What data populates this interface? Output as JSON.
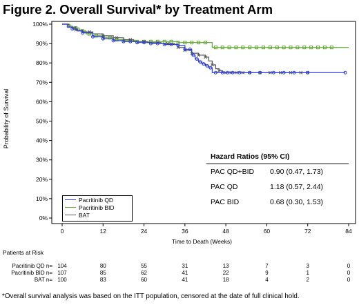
{
  "figure_title": "Figure 2. Overall Survival* by Treatment Arm",
  "colors": {
    "pacritinib_qd": "#2f3fd8",
    "pacritinib_bid": "#5fa832",
    "bat": "#555555",
    "grid": "#bbbbbb"
  },
  "chart_data": {
    "type": "line",
    "title": "Figure 2. Overall Survival* by Treatment Arm",
    "xlabel": "Time to Death (Weeks)",
    "ylabel": "Probability of Survival",
    "xlim": [
      0,
      84
    ],
    "ylim": [
      0,
      100
    ],
    "x_ticks": [
      "0",
      "12",
      "24",
      "36",
      "48",
      "60",
      "72",
      "84"
    ],
    "y_ticks": [
      "0%",
      "10%",
      "20%",
      "30%",
      "40%",
      "50%",
      "60%",
      "70%",
      "80%",
      "90%",
      "100%"
    ],
    "grid": false,
    "legend_position": "bottom-left",
    "series": [
      {
        "name": "Pacritinib QD",
        "marker": "circle",
        "x": [
          0,
          1.5,
          3,
          4.5,
          6,
          9,
          12,
          15,
          18,
          22,
          26,
          30,
          34,
          36,
          38,
          39,
          40,
          41,
          42,
          43,
          44,
          47,
          50,
          60,
          70,
          83
        ],
        "y": [
          100,
          98.5,
          97.5,
          96.5,
          95.5,
          93.5,
          92.5,
          91.5,
          91,
          90.5,
          90,
          89.5,
          89,
          87,
          84,
          82,
          80.5,
          79.5,
          78.5,
          77.5,
          75,
          75,
          75,
          75,
          75,
          75
        ],
        "censor_x": [
          3,
          6,
          9,
          12,
          15,
          18,
          20,
          22,
          24,
          26,
          28,
          30,
          32,
          34,
          36,
          37.5,
          38.5,
          39.5,
          40.5,
          41.5,
          42.5,
          43.5,
          45,
          47,
          48.5,
          50,
          52,
          55,
          58,
          62,
          65,
          68,
          72,
          83
        ]
      },
      {
        "name": "Pacritinib BID",
        "marker": "square",
        "x": [
          0,
          2,
          3,
          5,
          7,
          9,
          12,
          15,
          18,
          22,
          26,
          30,
          34,
          36,
          39,
          42,
          44,
          46,
          60,
          72,
          84
        ],
        "y": [
          100,
          99,
          98,
          96.5,
          95,
          94,
          93,
          92,
          91.5,
          91,
          91,
          91,
          90.5,
          90.5,
          90.5,
          90.5,
          88,
          88,
          88,
          88,
          88
        ],
        "censor_x": [
          2,
          4,
          6,
          8,
          10,
          12,
          14,
          16,
          18,
          20,
          22,
          24,
          26,
          28,
          30,
          32,
          34,
          36,
          38,
          40,
          42,
          45,
          47,
          49,
          51,
          53,
          55,
          57,
          59,
          61,
          63,
          65,
          67,
          69,
          71,
          73,
          75,
          77,
          79
        ]
      },
      {
        "name": "BAT",
        "marker": "x",
        "x": [
          0,
          2,
          4,
          6,
          9,
          12,
          15,
          18,
          21,
          25,
          29,
          33,
          34,
          36,
          38,
          40,
          42,
          43,
          44,
          45,
          46,
          47,
          60,
          70,
          72
        ],
        "y": [
          100,
          98.5,
          97,
          96,
          95,
          94,
          93,
          92,
          91,
          90.5,
          90,
          89.5,
          88,
          86.5,
          85,
          84,
          83,
          81,
          79,
          77,
          76,
          75,
          75,
          75,
          75
        ],
        "censor_x": [
          4,
          8,
          12,
          16,
          20,
          24,
          28,
          31,
          34,
          36,
          38,
          40,
          42,
          44,
          46,
          48,
          49.5,
          51,
          53,
          55,
          58,
          61,
          64,
          67,
          70,
          72
        ]
      }
    ],
    "hazard_ratios": {
      "title": "Hazard Ratios (95% CI)",
      "rows": [
        {
          "arm": "PAC QD+BID",
          "value": "0.90 (0.47, 1.73)"
        },
        {
          "arm": "PAC QD",
          "value": "1.18 (0.57, 2.44)"
        },
        {
          "arm": "PAC BID",
          "value": "0.68 (0.30, 1.53)"
        }
      ]
    }
  },
  "risk_table": {
    "title": "Patients at Risk",
    "rows": [
      {
        "label": "Pacritinib QD n=",
        "values": [
          "104",
          "80",
          "55",
          "31",
          "13",
          "7",
          "3",
          "0"
        ]
      },
      {
        "label": "Pacritinib BID n=",
        "values": [
          "107",
          "85",
          "62",
          "41",
          "22",
          "9",
          "1",
          "0"
        ]
      },
      {
        "label": "BAT n=",
        "values": [
          "100",
          "83",
          "60",
          "41",
          "18",
          "4",
          "2",
          "0"
        ]
      }
    ]
  },
  "footnote": "*Overall survival analysis was based on the ITT population, censored at the date of full clinical hold."
}
